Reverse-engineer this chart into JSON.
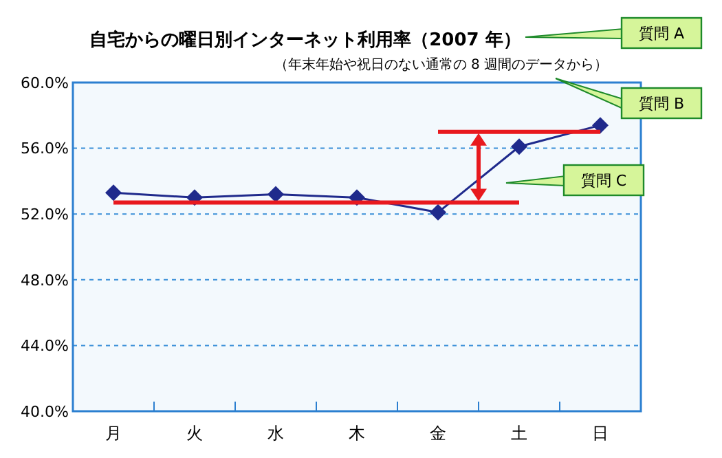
{
  "chart_data": {
    "type": "line",
    "title": "自宅からの曜日別インターネット利用率（2007 年）",
    "subtitle": "（年末年始や祝日のない通常の 8 週間のデータから）",
    "categories": [
      "月",
      "火",
      "水",
      "木",
      "金",
      "土",
      "日"
    ],
    "series": [
      {
        "color": "#1f2a8c",
        "values": [
          53.3,
          53.0,
          53.2,
          53.0,
          52.1,
          56.1,
          57.4
        ],
        "marker": "diamond"
      },
      {
        "type": "line",
        "color": "#e8191e",
        "values": [
          52.7,
          52.7,
          52.7,
          52.7,
          52.7,
          52.7,
          null
        ],
        "marker": "none"
      },
      {
        "type": "line",
        "color": "#e8191e",
        "values": [
          null,
          null,
          null,
          null,
          57.0,
          57.0,
          57.0
        ],
        "marker": "none"
      }
    ],
    "ylim": [
      40,
      60
    ],
    "yticks": [
      {
        "value": 40,
        "label": "40.0%"
      },
      {
        "value": 44,
        "label": "44.0%"
      },
      {
        "value": 48,
        "label": "48.0%"
      },
      {
        "value": 52,
        "label": "52.0%"
      },
      {
        "value": 56,
        "label": "56.0%"
      },
      {
        "value": 60,
        "label": "60.0%"
      }
    ],
    "grid": "y",
    "annotations": [
      "質問 A",
      "質問 B",
      "質問 C"
    ]
  }
}
